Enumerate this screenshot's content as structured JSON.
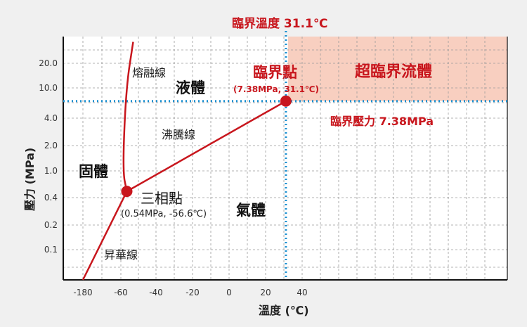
{
  "chart_data": {
    "type": "line",
    "title": "",
    "xlabel": "溫度 (℃)",
    "ylabel": "壓力 (MPa)",
    "x_ticks": [
      "-180",
      "-60",
      "-40",
      "-20",
      "0",
      "20",
      "40"
    ],
    "y_ticks": [
      "20.0",
      "10.0",
      "4.0",
      "2.0",
      "1.0",
      "0.4",
      "0.2",
      "0.1"
    ],
    "grid": true,
    "series": [
      {
        "name": "昇華線",
        "points": [
          [
            -180,
            0.05
          ],
          [
            -56.6,
            0.54
          ]
        ]
      },
      {
        "name": "熔融線",
        "points": [
          [
            -56.6,
            0.54
          ],
          [
            -59,
            1.0
          ],
          [
            -57,
            10.0
          ],
          [
            -53,
            28.0
          ]
        ]
      },
      {
        "name": "沸騰線",
        "points": [
          [
            -56.6,
            0.54
          ],
          [
            31.1,
            7.38
          ]
        ]
      }
    ],
    "triple_point": {
      "x": -56.6,
      "y": 0.54,
      "label": "三相點",
      "detail": "(0.54MPa, -56.6℃)"
    },
    "critical_point": {
      "x": 31.1,
      "y": 7.38,
      "label": "臨界點",
      "detail": "(7.38MPa, 31.1℃)"
    },
    "critical_temperature_label": "臨界溫度 31.1℃",
    "critical_pressure_label": "臨界壓力 7.38MPa",
    "region_labels": {
      "solid": "固體",
      "liquid": "液體",
      "gas": "氣體",
      "supercritical": "超臨界流體"
    },
    "curve_labels": {
      "melting": "熔融線",
      "boiling": "沸騰線",
      "sublimation": "昇華線"
    },
    "colors": {
      "curve": "#c8161d",
      "critical_lines": "#1a8fd0",
      "supercritical_fill": "#f8cfc0",
      "grid": "#9a9a9a"
    }
  }
}
